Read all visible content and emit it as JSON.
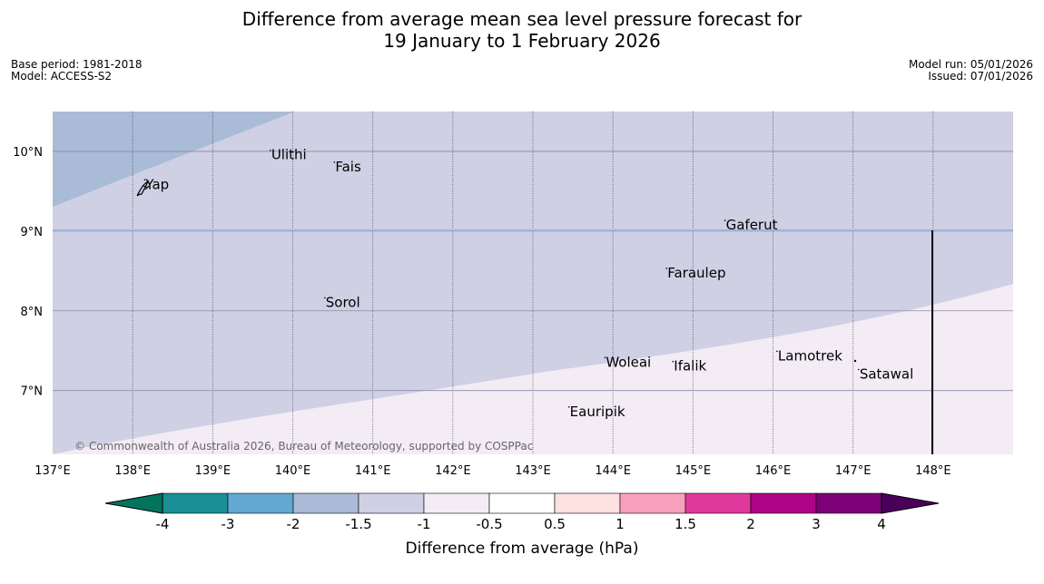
{
  "title": {
    "line1": "Difference from average mean sea level pressure forecast for",
    "line2": "19 January to 1 February 2026"
  },
  "meta": {
    "base_period": "Base period: 1981-2018",
    "model": "Model: ACCESS-S2",
    "model_run": "Model run: 05/01/2026",
    "issued": "Issued: 07/01/2026"
  },
  "map": {
    "lon_range": [
      137,
      149
    ],
    "lat_range": [
      6.2,
      10.5
    ],
    "lon_ticks": [
      {
        "value": 137,
        "label": "137°E"
      },
      {
        "value": 138,
        "label": "138°E"
      },
      {
        "value": 139,
        "label": "139°E"
      },
      {
        "value": 140,
        "label": "140°E"
      },
      {
        "value": 141,
        "label": "141°E"
      },
      {
        "value": 142,
        "label": "142°E"
      },
      {
        "value": 143,
        "label": "143°E"
      },
      {
        "value": 144,
        "label": "144°E"
      },
      {
        "value": 145,
        "label": "145°E"
      },
      {
        "value": 146,
        "label": "146°E"
      },
      {
        "value": 147,
        "label": "147°E"
      },
      {
        "value": 148,
        "label": "148°E"
      }
    ],
    "lat_ticks": [
      {
        "value": 10,
        "label": "10°N"
      },
      {
        "value": 9,
        "label": "9°N"
      },
      {
        "value": 8,
        "label": "8°N"
      },
      {
        "value": 7,
        "label": "7°N"
      }
    ],
    "places": [
      {
        "name": "Yap",
        "lon": 138.15,
        "lat": 9.53
      },
      {
        "name": "Ulithi",
        "lon": 139.72,
        "lat": 9.9
      },
      {
        "name": "Fais",
        "lon": 140.52,
        "lat": 9.75
      },
      {
        "name": "Gaferut",
        "lon": 145.4,
        "lat": 9.02
      },
      {
        "name": "Faraulep",
        "lon": 144.67,
        "lat": 8.42
      },
      {
        "name": "Sorol",
        "lon": 140.4,
        "lat": 8.05
      },
      {
        "name": "Woleai",
        "lon": 143.9,
        "lat": 7.3
      },
      {
        "name": "Ifalik",
        "lon": 144.75,
        "lat": 7.25
      },
      {
        "name": "Lamotrek",
        "lon": 146.05,
        "lat": 7.38
      },
      {
        "name": "Satawal",
        "lon": 147.07,
        "lat": 7.15
      },
      {
        "name": "Eauripik",
        "lon": 143.45,
        "lat": 6.68
      }
    ],
    "copyright": "© Commonwealth of Australia 2026, Bureau of Meteorology, supported by COSPPac"
  },
  "colors": {
    "band_neg2_neg1_5": "#a9bbd6",
    "band_neg1_5_neg1": "#cfd0e4",
    "band_neg1_neg0_5": "#f3ecf5"
  },
  "colorbar": {
    "label": "Difference from average (hPa)",
    "ticks": [
      "-4",
      "-3",
      "-2",
      "-1.5",
      "-1",
      "-0.5",
      "0.5",
      "1",
      "1.5",
      "2",
      "3",
      "4"
    ],
    "segment_colors": [
      "#1a8f94",
      "#62a8d2",
      "#a9bbd6",
      "#cfd0e4",
      "#f3ecf5",
      "#ffffff",
      "#fde0e0",
      "#f8a0bd",
      "#e0399c",
      "#ad0384",
      "#7c0176"
    ],
    "low_extend_color": "#03735e",
    "high_extend_color": "#4a005b"
  }
}
